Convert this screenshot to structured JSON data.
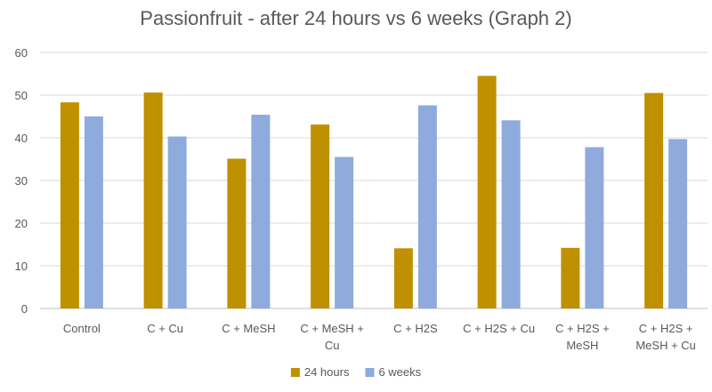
{
  "chart_data": {
    "type": "bar",
    "title": "Passionfruit - after 24 hours vs 6 weeks (Graph 2)",
    "categories": [
      "Control",
      "C + Cu",
      "C + MeSH",
      "C + MeSH + Cu",
      "C + H2S",
      "C + H2S + Cu",
      "C + H2S + MeSH",
      "C + H2S + MeSH + Cu"
    ],
    "category_lines": [
      [
        "Control"
      ],
      [
        "C + Cu"
      ],
      [
        "C + MeSH"
      ],
      [
        "C + MeSH +",
        "Cu"
      ],
      [
        "C + H2S"
      ],
      [
        "C + H2S + Cu"
      ],
      [
        "C + H2S +",
        "MeSH"
      ],
      [
        "C + H2S +",
        "MeSH + Cu"
      ]
    ],
    "series": [
      {
        "name": "24 hours",
        "color": "#bf9000",
        "values": [
          48.3,
          50.6,
          35.1,
          43.1,
          14.1,
          54.5,
          14.2,
          50.5
        ]
      },
      {
        "name": "6 weeks",
        "color": "#8faadc",
        "values": [
          45.0,
          40.3,
          45.4,
          35.5,
          47.6,
          44.1,
          37.8,
          39.7
        ]
      }
    ],
    "ylim": [
      0,
      60
    ],
    "yticks": [
      0,
      10,
      20,
      30,
      40,
      50,
      60
    ],
    "xlabel": "",
    "ylabel": "",
    "grid": true,
    "legend_position": "bottom",
    "gridline_color": "#d9d9d9",
    "axis_color": "#bfbfbf"
  }
}
